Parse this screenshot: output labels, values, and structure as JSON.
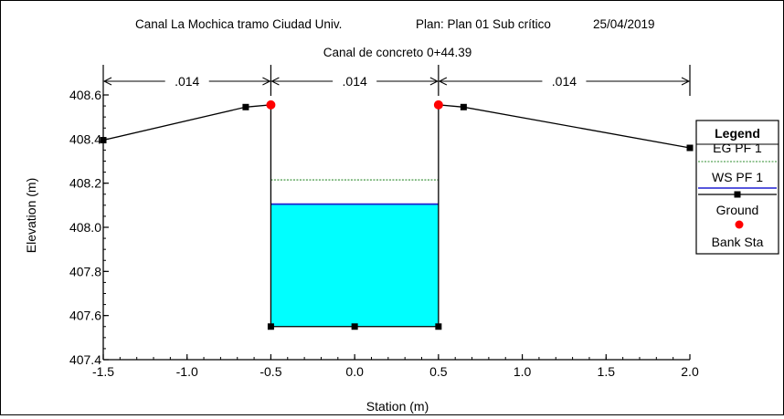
{
  "header": {
    "project": "Canal La Mochica tramo Ciudad Univ.",
    "plan": "Plan: Plan 01 Sub crítico",
    "date": "25/04/2019",
    "title": "Canal de concreto 0+44.39"
  },
  "chart_data": {
    "type": "line",
    "xlabel": "Station (m)",
    "ylabel": "Elevation (m)",
    "xlim": [
      -1.5,
      2.0
    ],
    "ylim": [
      407.4,
      408.6
    ],
    "xticks": [
      -1.5,
      -1.0,
      -0.5,
      0.0,
      0.5,
      1.0,
      1.5,
      2.0
    ],
    "xtick_labels": [
      "-1.5",
      "-1.0",
      "-0.5",
      "0.0",
      "0.5",
      "1.0",
      "1.5",
      "2.0"
    ],
    "yticks": [
      407.4,
      407.6,
      407.8,
      408.0,
      408.2,
      408.4,
      408.6
    ],
    "ytick_labels": [
      "407.4",
      "407.6",
      "407.8",
      "408.0",
      "408.2",
      "408.4",
      "408.6"
    ],
    "grid": false,
    "legend_position": "right",
    "legend_title": "Legend",
    "manning_n": [
      {
        "from": -1.5,
        "to": -0.5,
        "label": ".014"
      },
      {
        "from": -0.5,
        "to": 0.5,
        "label": ".014"
      },
      {
        "from": 0.5,
        "to": 2.0,
        "label": ".014"
      }
    ],
    "series": [
      {
        "name": "EG PF 1",
        "kind": "level",
        "color": "#2e8b2e",
        "style": "dotted",
        "from": -0.5,
        "to": 0.5,
        "y": 408.215
      },
      {
        "name": "WS PF 1",
        "kind": "level",
        "color": "#1f1fd0",
        "style": "solid",
        "from": -0.5,
        "to": 0.5,
        "y": 408.105
      },
      {
        "name": "Ground",
        "kind": "ground",
        "color": "#000000",
        "points": [
          {
            "x": -1.5,
            "y": 408.395
          },
          {
            "x": -0.65,
            "y": 408.545
          },
          {
            "x": -0.5,
            "y": 408.555
          },
          {
            "x": -0.5,
            "y": 407.55
          },
          {
            "x": 0.0,
            "y": 407.55
          },
          {
            "x": 0.5,
            "y": 407.55
          },
          {
            "x": 0.5,
            "y": 408.555
          },
          {
            "x": 0.65,
            "y": 408.545
          },
          {
            "x": 2.0,
            "y": 408.36
          }
        ]
      },
      {
        "name": "Bank Sta",
        "kind": "bank",
        "color": "#ff0000",
        "points": [
          {
            "x": -0.5,
            "y": 408.555
          },
          {
            "x": 0.5,
            "y": 408.555
          }
        ]
      }
    ],
    "water_fill": "#00ffff"
  }
}
